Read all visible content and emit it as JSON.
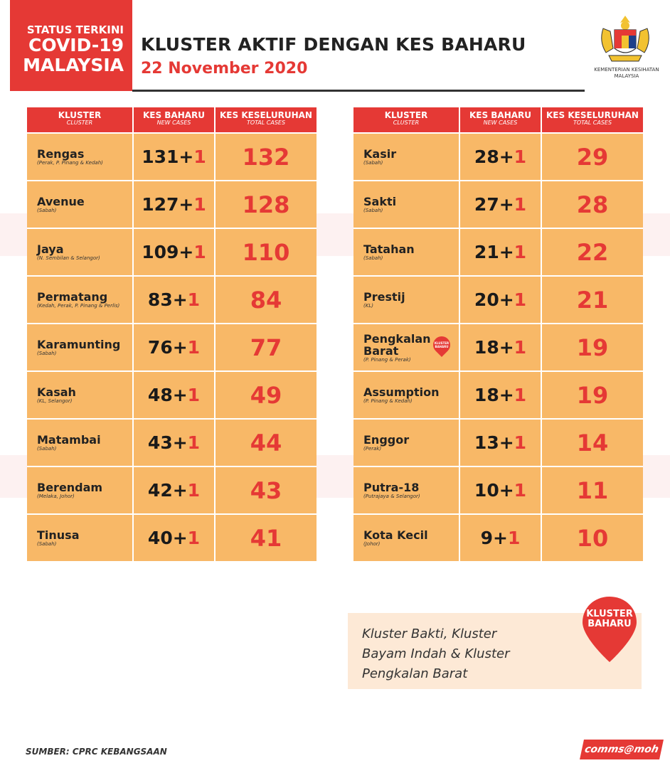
{
  "badge": {
    "line1": "STATUS TERKINI",
    "line2": "COVID-19",
    "line3": "MALAYSIA"
  },
  "header": {
    "title": "KLUSTER AKTIF DENGAN KES BAHARU",
    "date": "22 November 2020"
  },
  "logo": {
    "caption": "KEMENTERIAN KESIHATAN MALAYSIA"
  },
  "columns": {
    "cluster": "KLUSTER",
    "cluster_en": "CLUSTER",
    "new": "KES BAHARU",
    "new_en": "NEW CASES",
    "total": "KES KESELURUHAN",
    "total_en": "TOTAL CASES"
  },
  "left_table": [
    {
      "name": "Rengas",
      "region": "(Perak, P. Pinang & Kedah)",
      "base": "131",
      "plus": "+",
      "add": "1",
      "total": "132"
    },
    {
      "name": "Avenue",
      "region": "(Sabah)",
      "base": "127",
      "plus": "+",
      "add": "1",
      "total": "128"
    },
    {
      "name": "Jaya",
      "region": "(N. Sembilan & Selangor)",
      "base": "109",
      "plus": "+",
      "add": "1",
      "total": "110"
    },
    {
      "name": "Permatang",
      "region": "(Kedah, Perak, P. Pinang & Perlis)",
      "base": "83",
      "plus": "+",
      "add": "1",
      "total": "84"
    },
    {
      "name": "Karamunting",
      "region": "(Sabah)",
      "base": "76",
      "plus": "+",
      "add": "1",
      "total": "77"
    },
    {
      "name": "Kasah",
      "region": "(KL, Selangor)",
      "base": "48",
      "plus": "+",
      "add": "1",
      "total": "49"
    },
    {
      "name": "Matambai",
      "region": "(Sabah)",
      "base": "43",
      "plus": "+",
      "add": "1",
      "total": "44"
    },
    {
      "name": "Berendam",
      "region": "(Melaka, Johor)",
      "base": "42",
      "plus": "+",
      "add": "1",
      "total": "43"
    },
    {
      "name": "Tinusa",
      "region": "(Sabah)",
      "base": "40",
      "plus": "+",
      "add": "1",
      "total": "41"
    }
  ],
  "right_table": [
    {
      "name": "Kasir",
      "region": "(Sabah)",
      "base": "28",
      "plus": "+",
      "add": "1",
      "total": "29"
    },
    {
      "name": "Sakti",
      "region": "(Sabah)",
      "base": "27",
      "plus": "+",
      "add": "1",
      "total": "28"
    },
    {
      "name": "Tatahan",
      "region": "(Sabah)",
      "base": "21",
      "plus": "+",
      "add": "1",
      "total": "22"
    },
    {
      "name": "Prestij",
      "region": "(KL)",
      "base": "20",
      "plus": "+",
      "add": "1",
      "total": "21"
    },
    {
      "name": "Pengkalan Barat",
      "region": "(P. Pinang & Perak)",
      "base": "18",
      "plus": "+",
      "add": "1",
      "total": "19",
      "pin": "KLUSTER BAHARU"
    },
    {
      "name": "Assumption",
      "region": "(P. Pinang & Kedah)",
      "base": "18",
      "plus": "+",
      "add": "1",
      "total": "19"
    },
    {
      "name": "Enggor",
      "region": "(Perak)",
      "base": "13",
      "plus": "+",
      "add": "1",
      "total": "14"
    },
    {
      "name": "Putra-18",
      "region": "(Putrajaya & Selangor)",
      "base": "10",
      "plus": "+",
      "add": "1",
      "total": "11"
    },
    {
      "name": "Kota Kecil",
      "region": "(Johor)",
      "base": "9",
      "plus": "+",
      "add": "1",
      "total": "10"
    }
  ],
  "note": {
    "text": "Kluster Bakti, Kluster Bayam Indah & Kluster Pengkalan Barat",
    "pin_label": "KLUSTER BAHARU"
  },
  "footer": {
    "source": "SUMBER: CPRC KEBANGSAAN",
    "brand": "comms@moh"
  },
  "colors": {
    "accent": "#e53935",
    "cell": "#f8b867",
    "note_bg": "#fde9d6"
  }
}
